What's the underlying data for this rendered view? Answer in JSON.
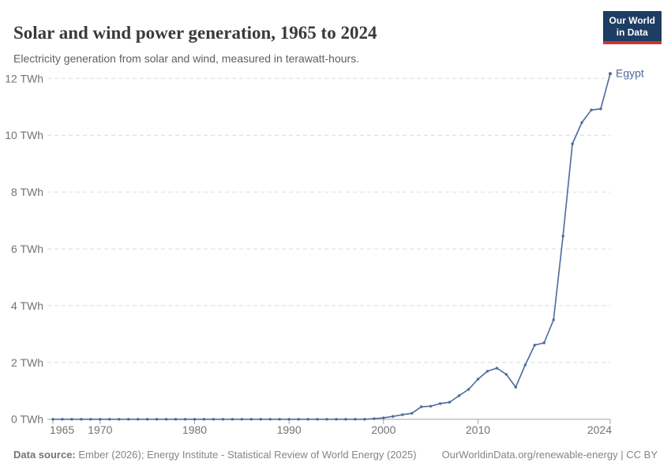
{
  "header": {
    "title": "Solar and wind power generation, 1965 to 2024",
    "subtitle": "Electricity generation from solar and wind, measured in terawatt-hours.",
    "logo": {
      "line1": "Our World",
      "line2": "in Data",
      "bg_color": "#1d3d63",
      "accent_color": "#cf3528"
    }
  },
  "chart_data": {
    "type": "line",
    "title": "Solar and wind power generation, 1965 to 2024",
    "ylabel": "",
    "xlabel": "",
    "unit": "terawatt-hours",
    "xlim": [
      1965,
      2024
    ],
    "ylim": [
      0,
      12.2
    ],
    "grid": "horizontal-dashed",
    "legend_position": "end-of-line-label",
    "x_ticks": [
      1965,
      1970,
      1980,
      1990,
      2000,
      2010,
      2024
    ],
    "y_ticks": [
      0,
      2,
      4,
      6,
      8,
      10,
      12
    ],
    "y_tick_suffix": " TWh",
    "series": [
      {
        "name": "Egypt",
        "color": "#4c6a9c",
        "x": [
          1965,
          1966,
          1967,
          1968,
          1969,
          1970,
          1971,
          1972,
          1973,
          1974,
          1975,
          1976,
          1977,
          1978,
          1979,
          1980,
          1981,
          1982,
          1983,
          1984,
          1985,
          1986,
          1987,
          1988,
          1989,
          1990,
          1991,
          1992,
          1993,
          1994,
          1995,
          1996,
          1997,
          1998,
          1999,
          2000,
          2001,
          2002,
          2003,
          2004,
          2005,
          2006,
          2007,
          2008,
          2009,
          2010,
          2011,
          2012,
          2013,
          2014,
          2015,
          2016,
          2017,
          2018,
          2019,
          2020,
          2021,
          2022,
          2023,
          2024
        ],
        "values": [
          0,
          0,
          0,
          0,
          0,
          0,
          0,
          0,
          0,
          0,
          0,
          0,
          0,
          0,
          0,
          0,
          0,
          0,
          0,
          0,
          0,
          0,
          0,
          0,
          0,
          0,
          0,
          0,
          0,
          0,
          0,
          0,
          0,
          0,
          0.02,
          0.05,
          0.1,
          0.16,
          0.21,
          0.44,
          0.46,
          0.55,
          0.6,
          0.83,
          1.05,
          1.41,
          1.69,
          1.8,
          1.58,
          1.13,
          1.91,
          2.61,
          2.69,
          3.5,
          6.45,
          9.7,
          10.45,
          10.89,
          10.93,
          12.17
        ]
      }
    ],
    "colors": {
      "line": "#4c6a9c",
      "gridline": "#dcdcdc",
      "axis": "#a3a3a3",
      "tick_label": "#737373"
    }
  },
  "footer": {
    "source_label": "Data source:",
    "source_text": " Ember (2026); Energy Institute - Statistical Review of World Energy (2025)",
    "link_text": "OurWorldinData.org/renewable-energy | CC BY"
  }
}
